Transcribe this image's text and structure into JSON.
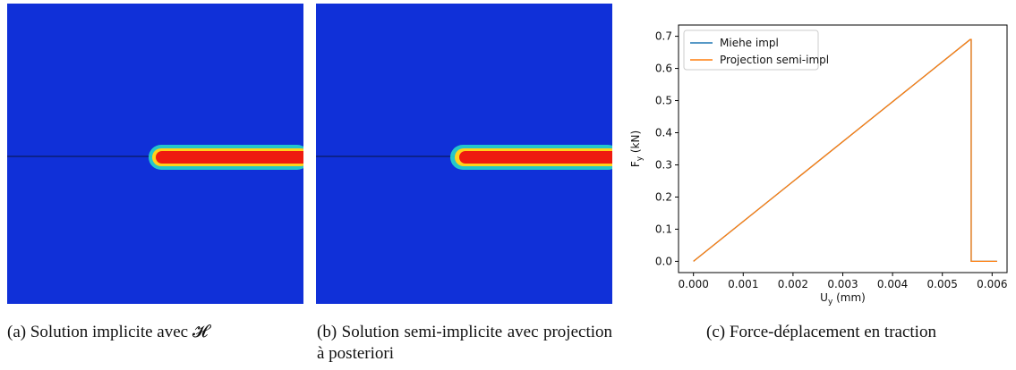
{
  "panels": {
    "a": {
      "caption_label": "(a)",
      "caption_text": "Solution implicite avec 𝓗"
    },
    "b": {
      "caption_label": "(b)",
      "caption_text": "Solution semi-implicite avec projection à posteriori"
    },
    "c": {
      "caption_label": "(c)",
      "caption_text": "Force-déplacement en traction"
    }
  },
  "colors": {
    "field_background": "#1030d8",
    "crack_core": "#ee1b10",
    "crack_halo_inner": "#ffd21a",
    "crack_halo_outer": "#28e0c8",
    "series_miehe": "#1f77b4",
    "series_projection": "#ff7f0e"
  },
  "chart_data": {
    "type": "line",
    "title": "",
    "xlabel": "U_y (mm)",
    "ylabel": "F_y (kN)",
    "xlim": [
      -0.0003,
      0.0063
    ],
    "ylim": [
      -0.035,
      0.735
    ],
    "xticks": [
      0.0,
      0.001,
      0.002,
      0.003,
      0.004,
      0.005,
      0.006
    ],
    "xtick_labels": [
      "0.000",
      "0.001",
      "0.002",
      "0.003",
      "0.004",
      "0.005",
      "0.006"
    ],
    "yticks": [
      0.0,
      0.1,
      0.2,
      0.3,
      0.4,
      0.5,
      0.6,
      0.7
    ],
    "ytick_labels": [
      "0.0",
      "0.1",
      "0.2",
      "0.3",
      "0.4",
      "0.5",
      "0.6",
      "0.7"
    ],
    "grid": false,
    "legend_position": "top-left",
    "series": [
      {
        "name": "Miehe impl",
        "x": [
          0.0,
          0.00556,
          0.00558,
          0.00558,
          0.0061
        ],
        "y": [
          0.0,
          0.69,
          0.69,
          0.0,
          0.0
        ]
      },
      {
        "name": "Projection semi-impl",
        "x": [
          0.0,
          0.00556,
          0.00558,
          0.00558,
          0.0061
        ],
        "y": [
          0.0,
          0.69,
          0.69,
          0.0,
          0.0
        ]
      }
    ]
  }
}
